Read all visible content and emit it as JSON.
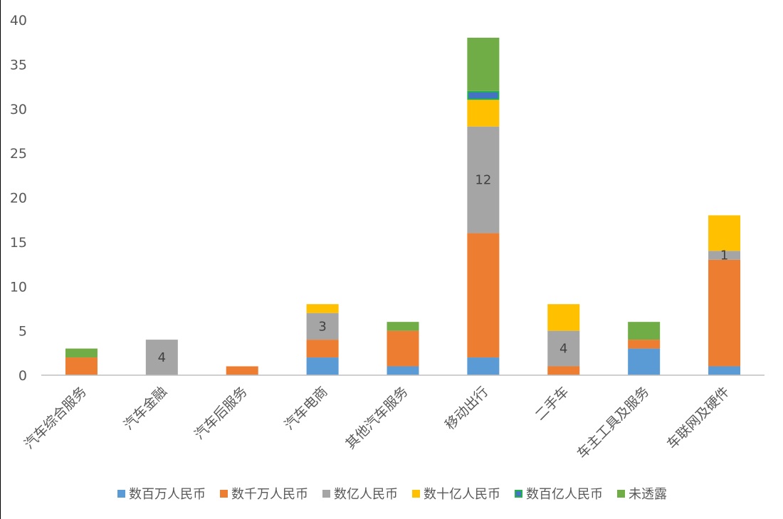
{
  "chart_data": {
    "type": "bar",
    "stacked": true,
    "categories": [
      "汽车综合服务",
      "汽车金融",
      "汽车后服务",
      "汽车电商",
      "其他汽车服务",
      "移动出行",
      "二手车",
      "车主工具及服务",
      "车联网及硬件"
    ],
    "series": [
      {
        "name": "数百万人民币",
        "color": "#5B9BD5",
        "values": [
          0,
          0,
          0,
          2,
          1,
          2,
          0,
          3,
          1
        ]
      },
      {
        "name": "数千万人民币",
        "color": "#ED7D31",
        "values": [
          2,
          0,
          1,
          2,
          4,
          14,
          1,
          1,
          12
        ]
      },
      {
        "name": "数亿人民币",
        "color": "#A5A5A5",
        "values": [
          0,
          4,
          0,
          3,
          0,
          12,
          4,
          0,
          1
        ]
      },
      {
        "name": "数十亿人民币",
        "color": "#FFC000",
        "values": [
          0,
          0,
          0,
          1,
          0,
          3,
          3,
          0,
          4
        ]
      },
      {
        "name": "数百亿人民币",
        "color": "#4472C4",
        "border": "#22B14C",
        "values": [
          0,
          0,
          0,
          0,
          0,
          1,
          0,
          0,
          0
        ]
      },
      {
        "name": "未透露",
        "color": "#70AD47",
        "values": [
          1,
          0,
          0,
          0,
          1,
          6,
          0,
          2,
          0
        ]
      }
    ],
    "data_labels": [
      {
        "category": "汽车金融",
        "series": "数亿人民币",
        "text": "4"
      },
      {
        "category": "汽车电商",
        "series": "数亿人民币",
        "text": "3"
      },
      {
        "category": "移动出行",
        "series": "数亿人民币",
        "text": "12"
      },
      {
        "category": "二手车",
        "series": "数亿人民币",
        "text": "4"
      },
      {
        "category": "车联网及硬件",
        "series": "数亿人民币",
        "text": "1"
      }
    ],
    "ylim": [
      0,
      40
    ],
    "yticks": [
      "0",
      "5",
      "10",
      "15",
      "20",
      "25",
      "30",
      "35",
      "40"
    ],
    "legend_position": "bottom",
    "grid": false,
    "title": "",
    "xlabel": "",
    "ylabel": ""
  }
}
